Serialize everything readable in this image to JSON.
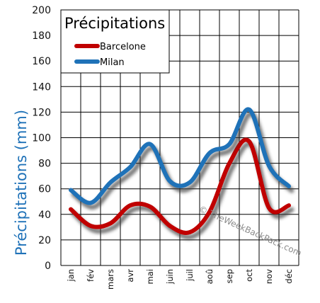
{
  "chart_data": {
    "type": "line",
    "title": "Précipitations",
    "ylabel": "Précipitations (mm)",
    "xlabel": "",
    "categories": [
      "jan",
      "fév",
      "mars",
      "avr",
      "mai",
      "juin",
      "juil",
      "aoû",
      "sep",
      "oct",
      "nov",
      "déc"
    ],
    "ylim": [
      0,
      200
    ],
    "yticks": [
      0,
      20,
      40,
      60,
      80,
      100,
      120,
      140,
      160,
      180,
      200
    ],
    "grid": true,
    "legend_position": "top-left",
    "series": [
      {
        "name": "Barcelone",
        "color": "#c00000",
        "values": [
          44,
          31,
          33,
          47,
          46,
          31,
          26,
          42,
          80,
          97,
          45,
          47
        ]
      },
      {
        "name": "Milan",
        "color": "#1f72b8",
        "values": [
          59,
          49,
          65,
          77,
          95,
          66,
          65,
          88,
          95,
          122,
          78,
          62
        ]
      }
    ],
    "watermark": "© TheWeekBackPack.com"
  }
}
